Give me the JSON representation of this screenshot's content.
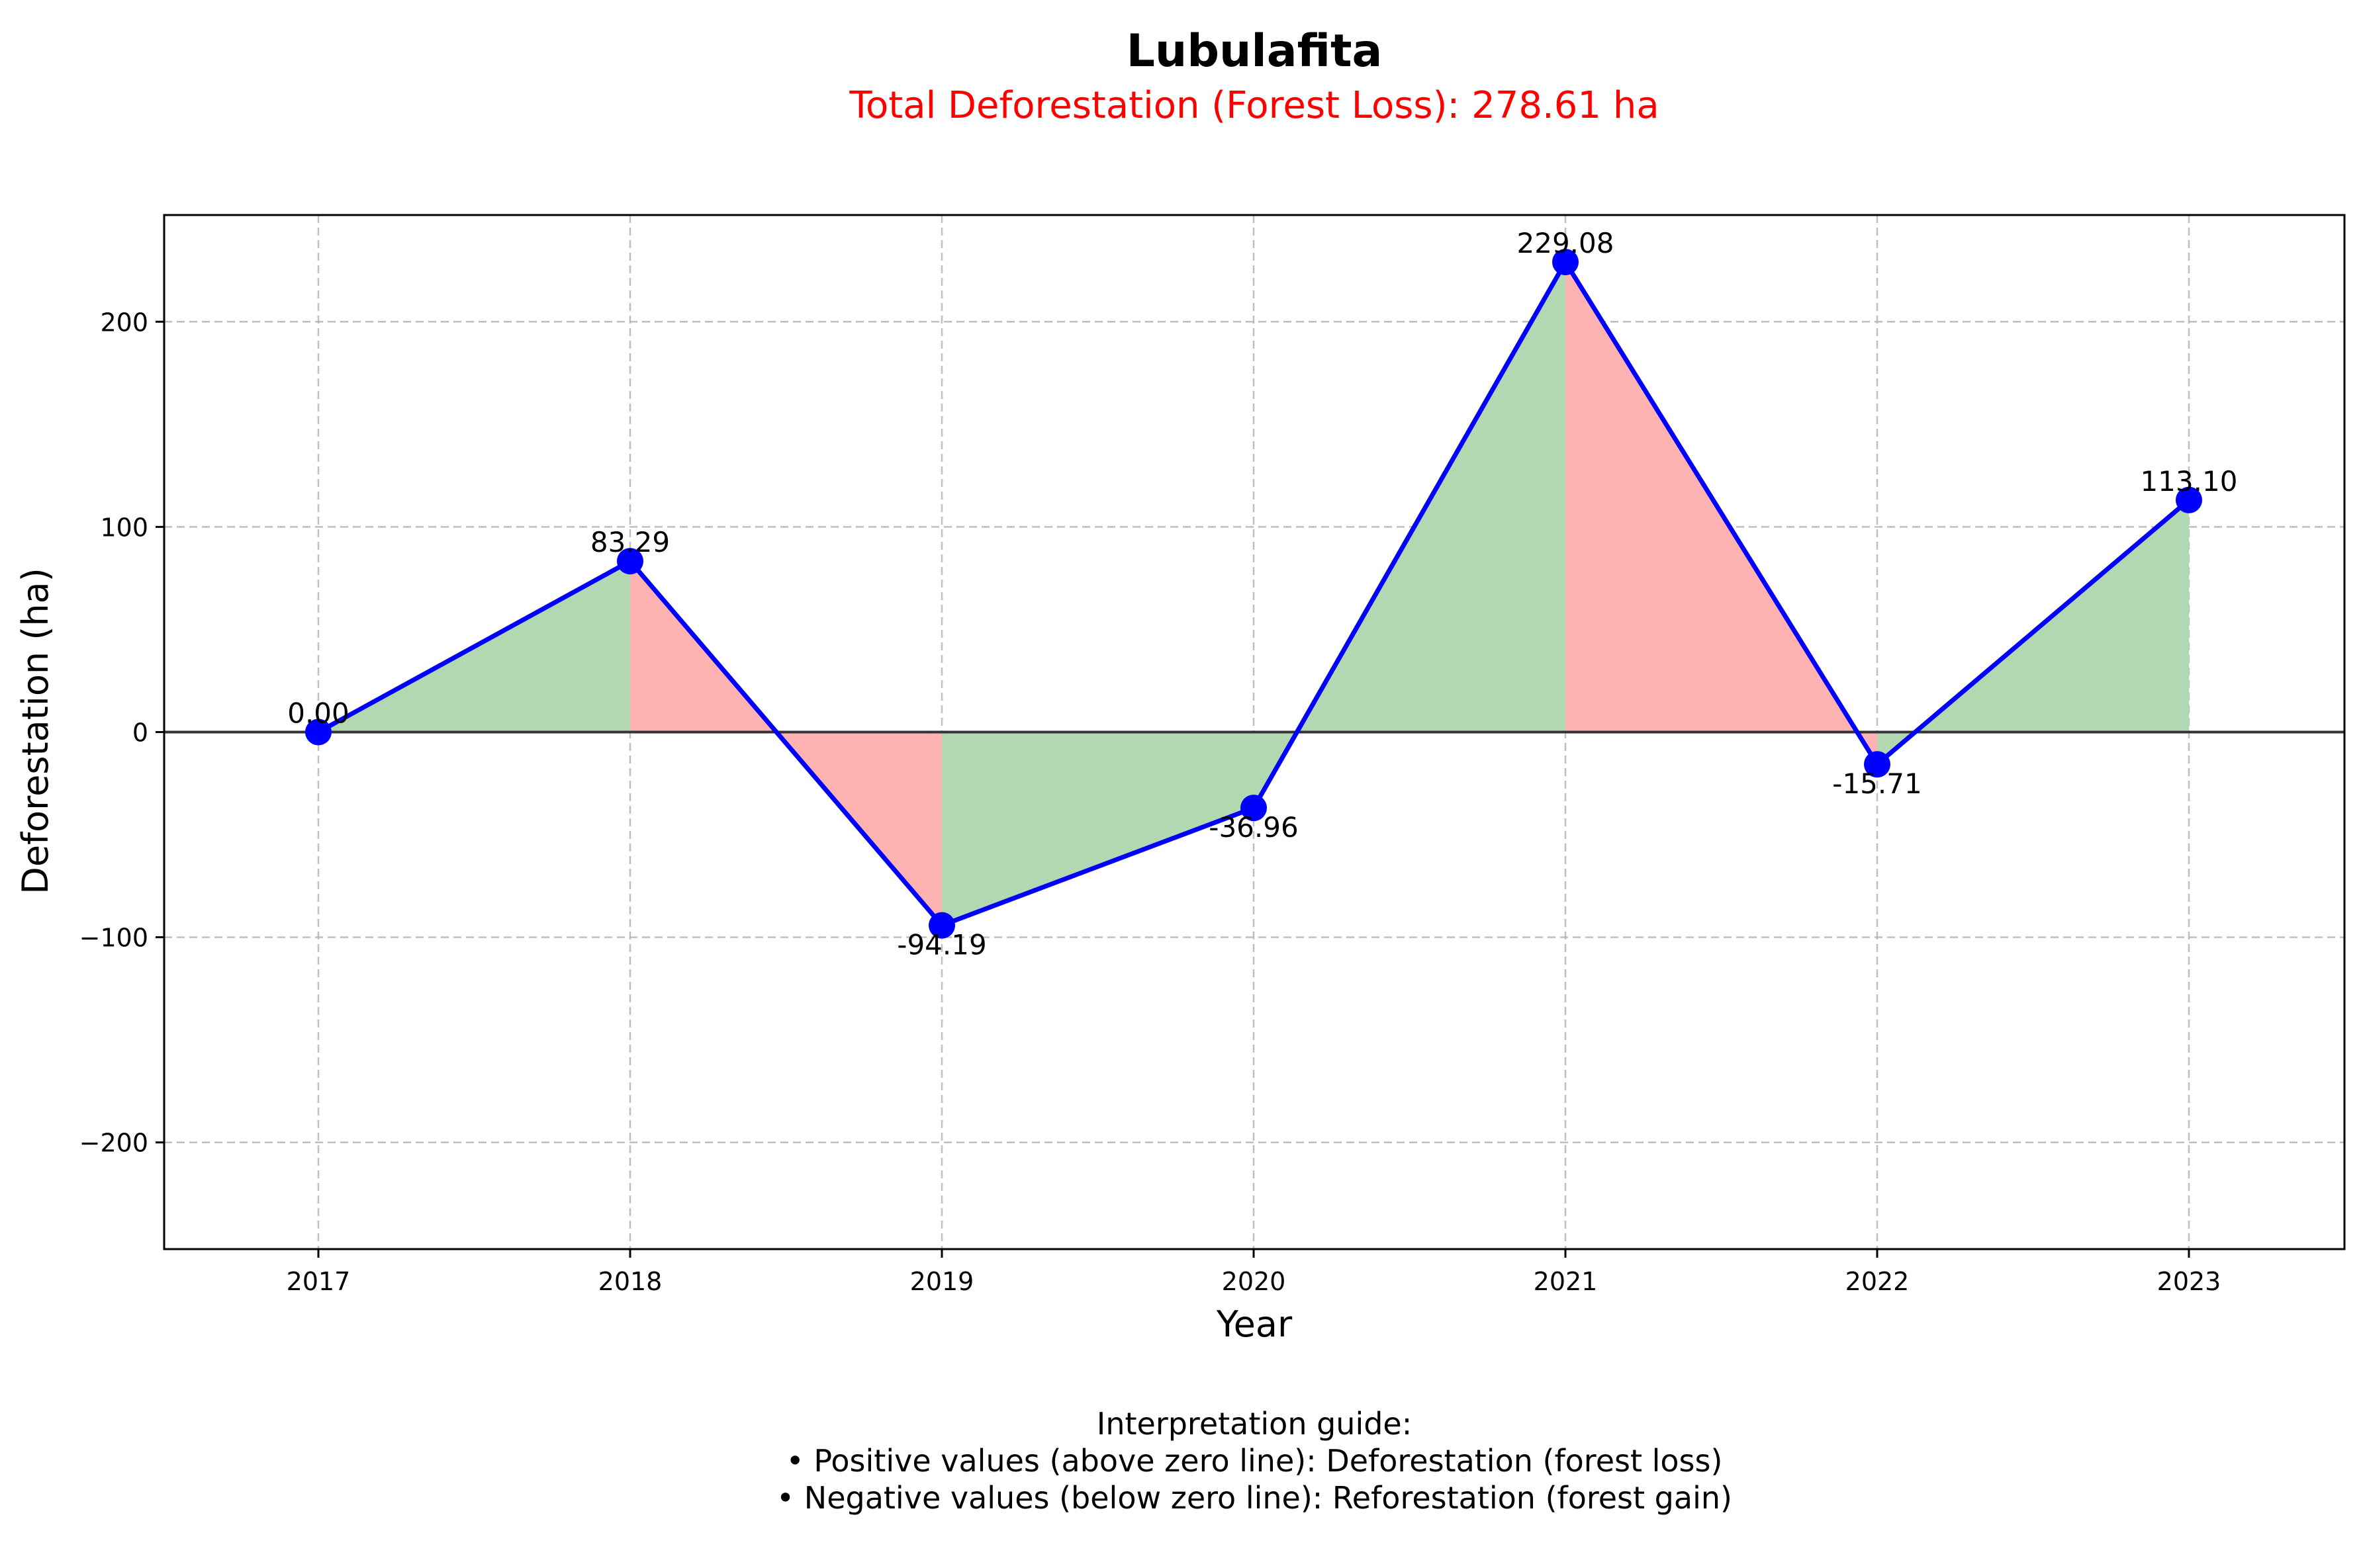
{
  "chart_data": {
    "type": "line",
    "title": "Lubulafita",
    "subtitle": "Total Deforestation (Forest Loss): 278.61 ha",
    "xlabel": "Year",
    "ylabel": "Deforestation (ha)",
    "categories": [
      "2017",
      "2018",
      "2019",
      "2020",
      "2021",
      "2022",
      "2023"
    ],
    "series": [
      {
        "values": [
          0.0,
          83.29,
          -94.19,
          -36.96,
          229.08,
          -15.71,
          113.1
        ]
      }
    ],
    "data_labels": [
      "0.00",
      "83.29",
      "-94.19",
      "-36.96",
      "229.08",
      "-15.71",
      "113.10"
    ],
    "ylim": [
      -252,
      252
    ],
    "yticks": [
      -200,
      -100,
      0,
      100,
      200
    ],
    "ytick_labels": [
      "−200",
      "−100",
      "0",
      "100",
      "200"
    ],
    "grid": true,
    "zero_line": true,
    "fill_increase_color": "#b2d8b2",
    "fill_decrease_color": "#ffb2b2",
    "line_color": "#0000ff",
    "marker_color": "#0000ff",
    "subtitle_color": "#ff0000",
    "guide": {
      "heading": "Interpretation guide:",
      "lines": [
        "• Positive values (above zero line): Deforestation (forest loss)",
        "• Negative values (below zero line): Reforestation (forest gain)"
      ]
    }
  }
}
